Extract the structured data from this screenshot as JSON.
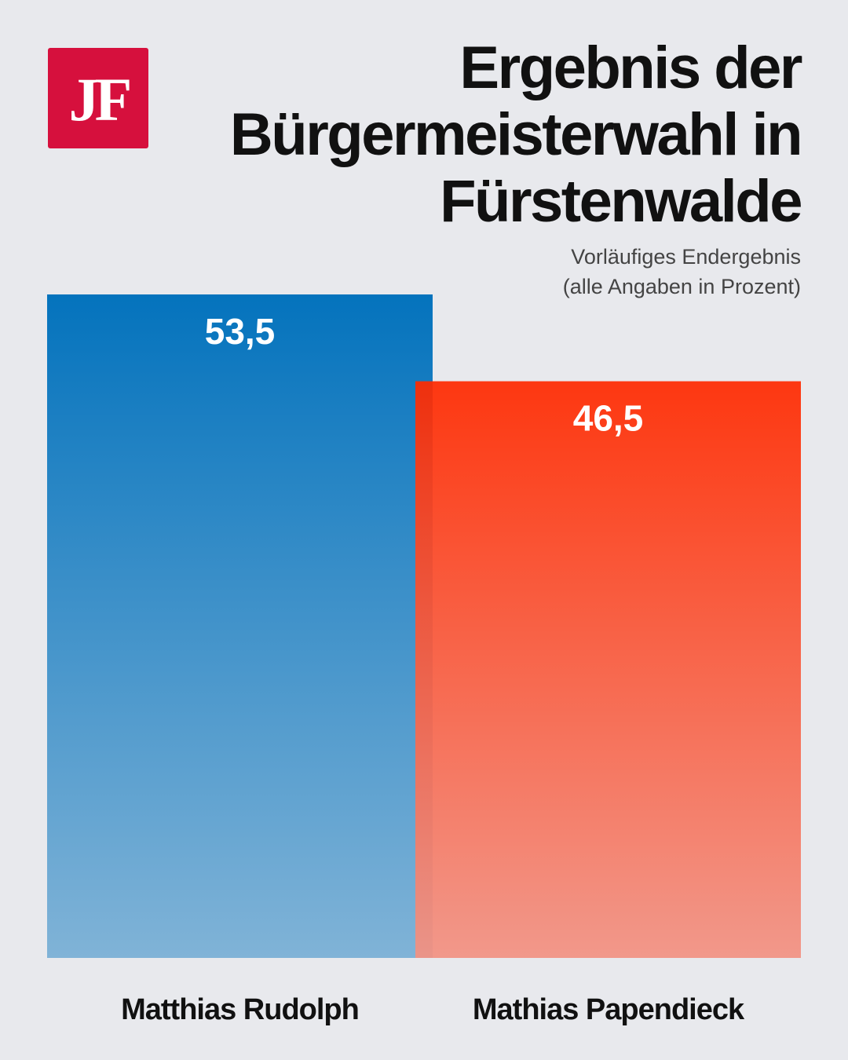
{
  "logo": {
    "text": "JF",
    "color": "#d6103d"
  },
  "title": [
    "Ergebnis der",
    "Bürgermeisterwahl in",
    "Fürstenwalde"
  ],
  "subtitle": [
    "Vorläufiges Endergebnis",
    "(alle Angaben in Prozent)"
  ],
  "chart_data": {
    "type": "bar",
    "categories": [
      "Matthias Rudolph",
      "Mathias Papendieck"
    ],
    "values": [
      53.5,
      46.5
    ],
    "value_labels": [
      "53,5",
      "46,5"
    ],
    "colors": [
      {
        "top": "#0473bd",
        "bottom": "#80b3d7"
      },
      {
        "top": "#ff2a00",
        "bottom": "#f29283"
      }
    ],
    "ylim": [
      0,
      53.5
    ],
    "grid": false,
    "legend": "none"
  }
}
